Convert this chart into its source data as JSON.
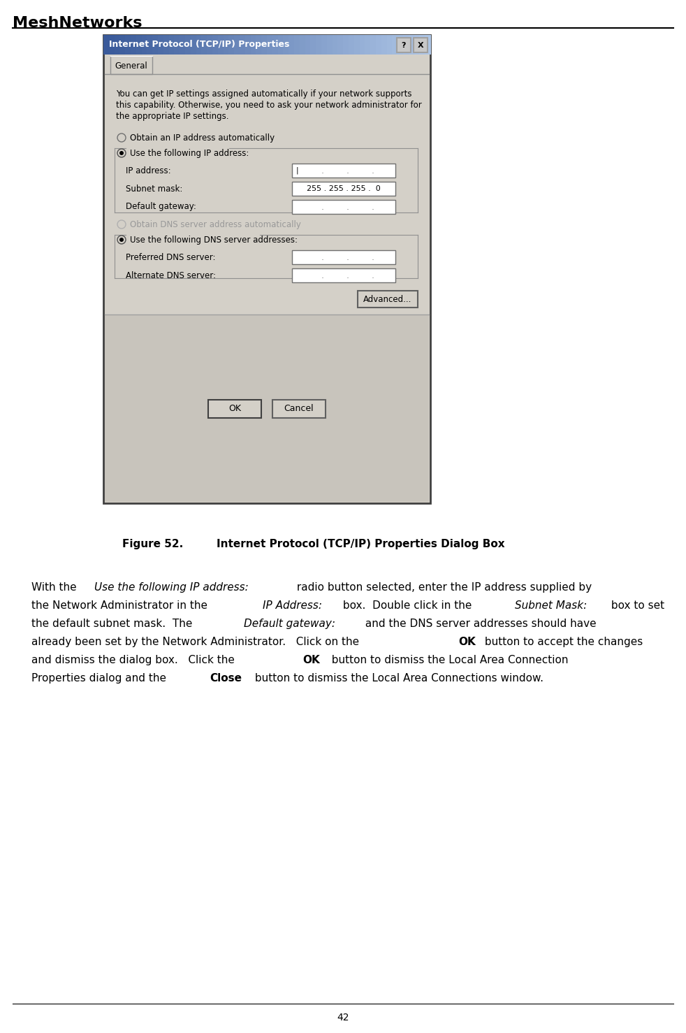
{
  "page_bg": "#ffffff",
  "header_text": "MeshNetworks",
  "header_font_size": 16,
  "figure_caption_label": "Figure 52.",
  "figure_caption_text": "Internet Protocol (TCP/IP) Properties Dialog Box",
  "page_number": "42",
  "dialog": {
    "title": "Internet Protocol (TCP/IP) Properties",
    "title_bg_left": "#3a5a9a",
    "title_bg_right": "#b0c8e8",
    "title_text_color": "#ffffff",
    "body_bg": "#d4d0c8",
    "bottom_bg": "#c8c4bc",
    "tab_text": "General",
    "info_text_line1": "You can get IP settings assigned automatically if your network supports",
    "info_text_line2": "this capability. Otherwise, you need to ask your network administrator for",
    "info_text_line3": "the appropriate IP settings.",
    "radio1_text": "Obtain an IP address automatically",
    "radio2_text": "Use the following IP address:",
    "ip_label": "IP address:",
    "subnet_label": "Subnet mask:",
    "subnet_value": "255 . 255 . 255 .  0",
    "gateway_label": "Default gateway:",
    "dns_radio1_text": "Obtain DNS server address automatically",
    "dns_radio2_text": "Use the following DNS server addresses:",
    "pref_dns_label": "Preferred DNS server:",
    "alt_dns_label": "Alternate DNS server:",
    "advanced_btn": "Advanced...",
    "ok_btn": "OK",
    "cancel_btn": "Cancel",
    "field_bg": "#ffffff",
    "disabled_text_color": "#999999"
  },
  "body_lines": [
    [
      [
        "With the ",
        "normal"
      ],
      [
        "Use the following IP address:",
        "italic"
      ],
      [
        " radio button selected, enter the IP address supplied by",
        "normal"
      ]
    ],
    [
      [
        "the Network Administrator in the ",
        "normal"
      ],
      [
        "IP Address:",
        "italic"
      ],
      [
        " box.  Double click in the ",
        "normal"
      ],
      [
        "Subnet Mask:",
        "italic"
      ],
      [
        " box to set",
        "normal"
      ]
    ],
    [
      [
        "the default subnet mask.  The ",
        "normal"
      ],
      [
        "Default gateway:",
        "italic"
      ],
      [
        " and the DNS server addresses should have",
        "normal"
      ]
    ],
    [
      [
        "already been set by the Network Administrator.   Click on the ",
        "normal"
      ],
      [
        "OK",
        "bold"
      ],
      [
        " button to accept the changes",
        "normal"
      ]
    ],
    [
      [
        "and dismiss the dialog box.   Click the  ",
        "normal"
      ],
      [
        "OK",
        "bold"
      ],
      [
        "  button to dismiss the Local Area Connection",
        "normal"
      ]
    ],
    [
      [
        "Properties dialog and the ",
        "normal"
      ],
      [
        "Close",
        "bold"
      ],
      [
        " button to dismiss the Local Area Connections window.",
        "normal"
      ]
    ]
  ]
}
